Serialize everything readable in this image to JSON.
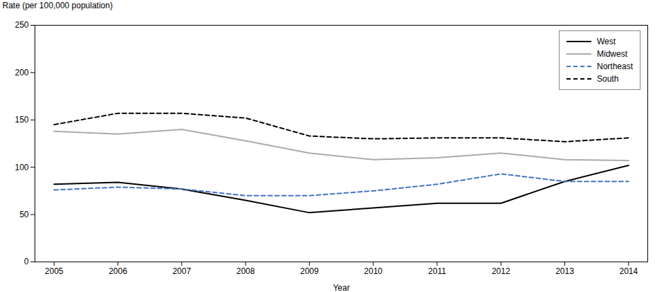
{
  "chart_data": {
    "type": "line",
    "xlabel": "Year",
    "ylabel": "Rate (per 100,000 population)",
    "x": [
      2005,
      2006,
      2007,
      2008,
      2009,
      2010,
      2011,
      2012,
      2013,
      2014
    ],
    "series": [
      {
        "name": "West",
        "color": "#000000",
        "line_style": "solid",
        "values": [
          82,
          84,
          77,
          65,
          52,
          57,
          62,
          62,
          85,
          102
        ]
      },
      {
        "name": "Midwest",
        "color": "#aaaaaa",
        "line_style": "solid",
        "values": [
          138,
          135,
          140,
          128,
          115,
          108,
          110,
          115,
          108,
          107
        ]
      },
      {
        "name": "Northeast",
        "color": "#4472c4",
        "line_style": "dashed",
        "values": [
          76,
          79,
          77,
          70,
          70,
          75,
          82,
          93,
          85,
          85
        ]
      },
      {
        "name": "South",
        "color": "#000000",
        "line_style": "dashed",
        "values": [
          145,
          157,
          157,
          152,
          133,
          130,
          131,
          131,
          127,
          131
        ]
      }
    ],
    "xlim": [
      2004.7,
      2014.3
    ],
    "xticks": [
      2005,
      2006,
      2007,
      2008,
      2009,
      2010,
      2011,
      2012,
      2013,
      2014
    ],
    "ylim": [
      0,
      250
    ],
    "yticks": [
      0,
      50,
      100,
      150,
      200,
      250
    ],
    "grid": false,
    "legend": "upper right"
  }
}
